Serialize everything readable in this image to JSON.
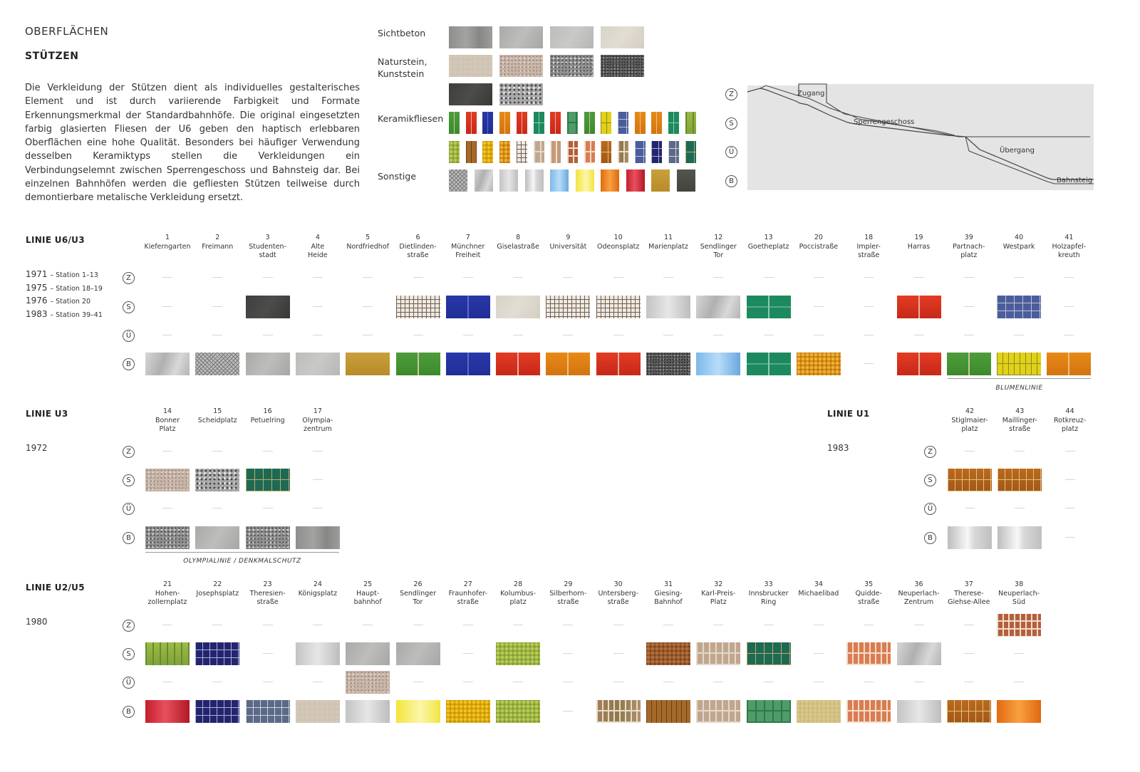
{
  "header": {
    "section": "OBERFLÄCHEN",
    "title": "STÜTZEN",
    "paragraph": "Die Verkleidung der Stützen dient als individuelles gestalterisches Element und ist durch variierende Farbigkeit und Formate Erkennungsmerkmal der Standardbahnhöfe. Die original eingesetzten farbig glasierten Fliesen der U6 geben den haptisch erlebbaren Oberflächen eine hohe Qualität. Besonders bei häufiger Verwendung desselben Keramiktyps stellen die Verkleidungen ein Verbindungselemnt zwischen Sperrengeschoss und Bahnsteig dar. Bei einzelnen Bahnhöfen werden die gefliesten Stützen teilweise durch demontierbare metalische Verkleidung ersetzt."
  },
  "materials": {
    "sichtbeton": {
      "label": "Sichtbeton",
      "swatches": [
        "concrete-dark",
        "concrete",
        "concrete-light",
        "concrete-beige"
      ]
    },
    "naturstein": {
      "label": "Naturstein,\nKunststein",
      "swatches": [
        "stone-beige",
        "granite-red",
        "granite-grey",
        "granite-dark",
        "slate-dark",
        "terrazzo-grey"
      ]
    },
    "keramik": {
      "label": "Keramikfliesen",
      "swatches": [
        "green",
        "red",
        "blue",
        "orange",
        "red",
        "teal",
        "red",
        "green-light",
        "green",
        "yellow",
        "blue-grey",
        "orange",
        "orange",
        "teal",
        "green-yellow",
        "mosaic-yellow-green",
        "brown",
        "mosaic-yellow",
        "mosaic-orange",
        "grid",
        "beige-tan",
        "brick-tan",
        "brick-orange",
        "brick-salmon",
        "brown-gold",
        "brick-multi",
        "blue-grey",
        "navy",
        "grey-blue",
        "teal-dark"
      ]
    },
    "sonstige": {
      "label": "Sonstige",
      "swatches": [
        "mesh",
        "steel",
        "silver",
        "chrome",
        "light-blue",
        "light-yellow",
        "orange-grad",
        "red-grad",
        "gold",
        "dark-grey"
      ]
    }
  },
  "levels": {
    "z": "Z",
    "s": "S",
    "u": "Ü",
    "b": "B"
  },
  "section_diagram": {
    "labels": {
      "zugang": "Zugang",
      "sperrengeschoss": "Sperrengeschoss",
      "uebergang": "Übergang",
      "bahnsteig": "Bahnsteig"
    }
  },
  "lines": {
    "u6u3": {
      "title": "LINIE U6/U3",
      "years": [
        {
          "year": "1971",
          "note": "– Station 1–13"
        },
        {
          "year": "1975",
          "note": "– Station 18–19"
        },
        {
          "year": "1976",
          "note": "– Station 20"
        },
        {
          "year": "1983",
          "note": "– Station 39–41"
        }
      ],
      "caption": "BLUMENLINIE",
      "stations": [
        {
          "num": "1",
          "name": "Kieferngarten",
          "z": null,
          "s": null,
          "u": null,
          "b": "steel"
        },
        {
          "num": "2",
          "name": "Freimann",
          "z": null,
          "s": null,
          "u": null,
          "b": "mesh"
        },
        {
          "num": "3",
          "name": "Studenten-\nstadt",
          "z": null,
          "s": "slate-dark",
          "u": null,
          "b": "concrete"
        },
        {
          "num": "4",
          "name": "Alte\nHeide",
          "z": null,
          "s": null,
          "u": null,
          "b": "concrete-light"
        },
        {
          "num": "5",
          "name": "Nordfriedhof",
          "z": null,
          "s": null,
          "u": null,
          "b": "gold"
        },
        {
          "num": "6",
          "name": "Dietlinden-\nstraße",
          "z": null,
          "s": "grid",
          "u": null,
          "b": "green"
        },
        {
          "num": "7",
          "name": "Münchner\nFreiheit",
          "z": null,
          "s": "blue",
          "u": null,
          "b": "blue"
        },
        {
          "num": "8",
          "name": "Giselastraße",
          "z": null,
          "s": "concrete-beige",
          "u": null,
          "b": "red"
        },
        {
          "num": "9",
          "name": "Universität",
          "z": null,
          "s": "grid",
          "u": null,
          "b": "orange"
        },
        {
          "num": "10",
          "name": "Odeonsplatz",
          "z": null,
          "s": "grid",
          "u": null,
          "b": "red"
        },
        {
          "num": "11",
          "name": "Marienplatz",
          "z": null,
          "s": "silver",
          "u": null,
          "b": "granite-dark"
        },
        {
          "num": "12",
          "name": "Sendlinger\nTor",
          "z": null,
          "s": "steel",
          "u": null,
          "b": "light-blue"
        },
        {
          "num": "13",
          "name": "Goetheplatz",
          "z": null,
          "s": "teal",
          "u": null,
          "b": "teal"
        },
        {
          "num": "20",
          "name": "Poccistraße",
          "z": null,
          "s": null,
          "u": null,
          "b": "mosaic-orange"
        },
        {
          "num": "18",
          "name": "Impler-\nstraße",
          "z": null,
          "s": null,
          "u": null,
          "b": null
        },
        {
          "num": "19",
          "name": "Harras",
          "z": null,
          "s": "red",
          "u": null,
          "b": "red"
        },
        {
          "num": "39",
          "name": "Partnach-\nplatz",
          "z": null,
          "s": null,
          "u": null,
          "b": "green"
        },
        {
          "num": "40",
          "name": "Westpark",
          "z": null,
          "s": "blue-grey",
          "u": null,
          "b": "yellow"
        },
        {
          "num": "41",
          "name": "Holzapfel-\nkreuth",
          "z": null,
          "s": null,
          "u": null,
          "b": "orange"
        }
      ]
    },
    "u3": {
      "title": "LINIE U3",
      "year": "1972",
      "caption": "OLYMPIALINIE  /  DENKMALSCHUTZ",
      "stations": [
        {
          "num": "14",
          "name": "Bonner\nPlatz",
          "z": null,
          "s": "granite-red",
          "u": null,
          "b": "granite-grey"
        },
        {
          "num": "15",
          "name": "Scheidplatz",
          "z": null,
          "s": "terrazzo-grey",
          "u": null,
          "b": "concrete"
        },
        {
          "num": "16",
          "name": "Petuelring",
          "z": null,
          "s": "teal-dark",
          "u": null,
          "b": "granite-grey"
        },
        {
          "num": "17",
          "name": "Olympia-\nzentrum",
          "z": null,
          "s": null,
          "u": null,
          "b": "concrete-dark"
        }
      ]
    },
    "u1": {
      "title": "LINIE U1",
      "year": "1983",
      "stations": [
        {
          "num": "42",
          "name": "Stiglmaier-\nplatz",
          "z": null,
          "s": "brown-gold",
          "u": null,
          "b": "chrome"
        },
        {
          "num": "43",
          "name": "Maillinger-\nstraße",
          "z": null,
          "s": "brown-gold",
          "u": null,
          "b": "chrome"
        },
        {
          "num": "44",
          "name": "Rotkreuz-\nplatz",
          "z": null,
          "s": null,
          "u": null,
          "b": null
        }
      ]
    },
    "u2u5": {
      "title": "LINIE U2/U5",
      "year": "1980",
      "stations": [
        {
          "num": "21",
          "name": "Hohen-\nzollernplatz",
          "z": null,
          "s": "green-yellow",
          "u": null,
          "b": "red-grad"
        },
        {
          "num": "22",
          "name": "Josephsplatz",
          "z": null,
          "s": "navy",
          "u": null,
          "b": "navy"
        },
        {
          "num": "23",
          "name": "Theresien-\nstraße",
          "z": null,
          "s": null,
          "u": null,
          "b": "grey-blue"
        },
        {
          "num": "24",
          "name": "Königsplatz",
          "z": null,
          "s": "silver",
          "u": null,
          "b": "stone-beige"
        },
        {
          "num": "25",
          "name": "Haupt-\nbahnhof",
          "z": null,
          "s": "concrete",
          "u": "granite-red",
          "b": "silver"
        },
        {
          "num": "26",
          "name": "Sendlinger\nTor",
          "z": null,
          "s": "concrete",
          "u": null,
          "b": "light-yellow"
        },
        {
          "num": "27",
          "name": "Fraunhofer-\nstraße",
          "z": null,
          "s": null,
          "u": null,
          "b": "mosaic-yellow"
        },
        {
          "num": "28",
          "name": "Kolumbus-\nplatz",
          "z": null,
          "s": "mosaic-yellow-green",
          "u": null,
          "b": "mosaic-yellow-green"
        },
        {
          "num": "29",
          "name": "Silberhorn-\nstraße",
          "z": null,
          "s": null,
          "u": null,
          "b": null
        },
        {
          "num": "30",
          "name": "Untersberg-\nstraße",
          "z": null,
          "s": null,
          "u": null,
          "b": "brick-multi"
        },
        {
          "num": "31",
          "name": "Giesing-\nBahnhof",
          "z": null,
          "s": "hex-brown",
          "u": null,
          "b": "brown"
        },
        {
          "num": "32",
          "name": "Karl-Preis-\nPlatz",
          "z": null,
          "s": "beige-tan",
          "u": null,
          "b": "beige-tan"
        },
        {
          "num": "33",
          "name": "Innsbrucker\nRing",
          "z": null,
          "s": "teal-dark",
          "u": null,
          "b": "green-light"
        },
        {
          "num": "34",
          "name": "Michaelibad",
          "z": null,
          "s": null,
          "u": null,
          "b": "stone-yellow"
        },
        {
          "num": "35",
          "name": "Quidde-\nstraße",
          "z": null,
          "s": "brick-salmon",
          "u": null,
          "b": "brick-salmon"
        },
        {
          "num": "36",
          "name": "Neuperlach-\nZentrum",
          "z": null,
          "s": "steel",
          "u": null,
          "b": "silver"
        },
        {
          "num": "37",
          "name": "Therese-\nGiehse-Allee",
          "z": null,
          "s": null,
          "u": null,
          "b": "brown-gold"
        },
        {
          "num": "38",
          "name": "Neuperlach-\nSüd",
          "z": "brick-orange",
          "s": null,
          "u": null,
          "b": "orange-grad"
        }
      ]
    }
  }
}
